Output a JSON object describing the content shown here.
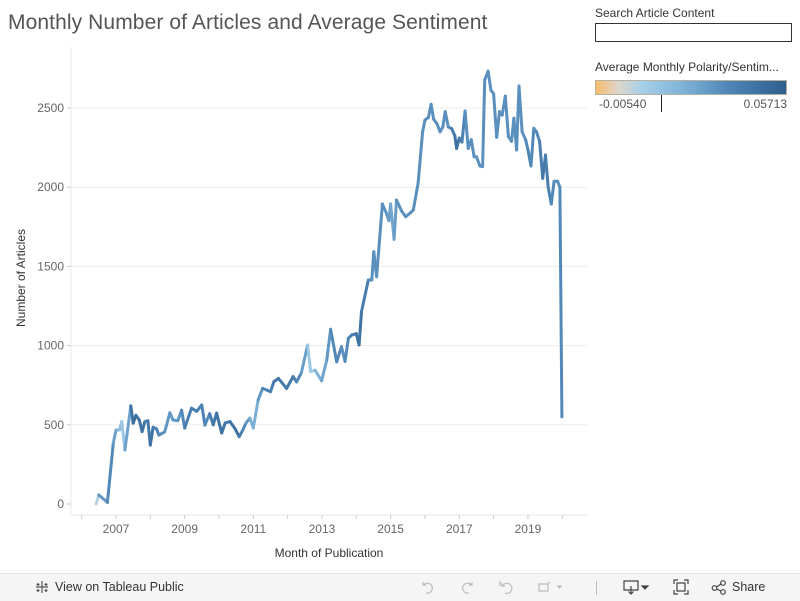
{
  "title": "Monthly Number of Articles and Average Sentiment",
  "search": {
    "label": "Search Article Content",
    "value": ""
  },
  "legend": {
    "title": "Average Monthly Polarity/Sentim...",
    "min_label": "-0.00540",
    "max_label": "0.05713",
    "min": -0.0054,
    "max": 0.05713,
    "colors": [
      "#f8bd6e",
      "#dcd6cc",
      "#a6d0e8",
      "#80b3d8",
      "#4f86b7",
      "#2d5e8e"
    ]
  },
  "toolbar": {
    "view_label": "View on Tableau Public",
    "share_label": "Share"
  },
  "chart_data": {
    "type": "line",
    "title": "Monthly Number of Articles and Average Sentiment",
    "xlabel": "Month of Publication",
    "ylabel": "Number of Articles",
    "xlim": [
      2005.85,
      2021.0
    ],
    "ylim": [
      -50,
      2820
    ],
    "x_ticks": [
      "2007",
      "2009",
      "2011",
      "2013",
      "2015",
      "2017",
      "2019"
    ],
    "y_ticks": [
      "0",
      "500",
      "1000",
      "1500",
      "2000",
      "2500"
    ],
    "grid": true,
    "color_by": "Average Monthly Polarity/Sentiment",
    "points": [
      [
        2006.42,
        0,
        -0.0054
      ],
      [
        2006.5,
        57,
        0.02
      ],
      [
        2006.75,
        10,
        0.045
      ],
      [
        2006.92,
        385,
        0.03
      ],
      [
        2007.0,
        467,
        0.03
      ],
      [
        2007.1,
        467,
        0.02
      ],
      [
        2007.17,
        520,
        0.015
      ],
      [
        2007.26,
        340,
        0.012
      ],
      [
        2007.43,
        620,
        0.045
      ],
      [
        2007.5,
        510,
        0.05
      ],
      [
        2007.58,
        560,
        0.05
      ],
      [
        2007.68,
        530,
        0.045
      ],
      [
        2007.76,
        457,
        0.05
      ],
      [
        2007.84,
        520,
        0.045
      ],
      [
        2007.93,
        525,
        0.04
      ],
      [
        2008.0,
        372,
        0.05
      ],
      [
        2008.08,
        485,
        0.045
      ],
      [
        2008.18,
        475,
        0.04
      ],
      [
        2008.25,
        435,
        0.04
      ],
      [
        2008.42,
        455,
        0.035
      ],
      [
        2008.57,
        576,
        0.03
      ],
      [
        2008.66,
        530,
        0.035
      ],
      [
        2008.8,
        526,
        0.03
      ],
      [
        2008.91,
        593,
        0.035
      ],
      [
        2009.0,
        480,
        0.04
      ],
      [
        2009.2,
        605,
        0.045
      ],
      [
        2009.35,
        585,
        0.04
      ],
      [
        2009.5,
        625,
        0.045
      ],
      [
        2009.59,
        498,
        0.035
      ],
      [
        2009.73,
        570,
        0.04
      ],
      [
        2009.83,
        500,
        0.045
      ],
      [
        2009.93,
        573,
        0.045
      ],
      [
        2010.08,
        448,
        0.05
      ],
      [
        2010.18,
        512,
        0.045
      ],
      [
        2010.32,
        520,
        0.045
      ],
      [
        2010.47,
        475,
        0.05
      ],
      [
        2010.59,
        425,
        0.045
      ],
      [
        2010.69,
        465,
        0.04
      ],
      [
        2010.79,
        512,
        0.035
      ],
      [
        2010.9,
        543,
        0.03
      ],
      [
        2011.0,
        480,
        0.018
      ],
      [
        2011.14,
        656,
        0.03
      ],
      [
        2011.27,
        730,
        0.035
      ],
      [
        2011.39,
        720,
        0.04
      ],
      [
        2011.5,
        709,
        0.04
      ],
      [
        2011.6,
        772,
        0.045
      ],
      [
        2011.73,
        793,
        0.045
      ],
      [
        2011.97,
        730,
        0.045
      ],
      [
        2012.16,
        804,
        0.045
      ],
      [
        2012.26,
        771,
        0.04
      ],
      [
        2012.4,
        829,
        0.035
      ],
      [
        2012.58,
        1004,
        0.025
      ],
      [
        2012.67,
        835,
        0.002
      ],
      [
        2012.8,
        845,
        0.02
      ],
      [
        2012.99,
        778,
        0.025
      ],
      [
        2013.14,
        909,
        0.03
      ],
      [
        2013.25,
        1103,
        0.035
      ],
      [
        2013.43,
        898,
        0.04
      ],
      [
        2013.57,
        993,
        0.035
      ],
      [
        2013.67,
        900,
        0.035
      ],
      [
        2013.77,
        1046,
        0.04
      ],
      [
        2013.87,
        1067,
        0.04
      ],
      [
        2014.0,
        1075,
        0.045
      ],
      [
        2014.08,
        1004,
        0.05
      ],
      [
        2014.15,
        1214,
        0.045
      ],
      [
        2014.35,
        1414,
        0.04
      ],
      [
        2014.45,
        1414,
        0.035
      ],
      [
        2014.51,
        1593,
        0.035
      ],
      [
        2014.59,
        1435,
        0.035
      ],
      [
        2014.76,
        1894,
        0.035
      ],
      [
        2014.86,
        1845,
        0.035
      ],
      [
        2014.95,
        1789,
        0.03
      ],
      [
        2015.0,
        1894,
        0.03
      ],
      [
        2015.1,
        1671,
        0.025
      ],
      [
        2015.17,
        1919,
        0.035
      ],
      [
        2015.32,
        1850,
        0.035
      ],
      [
        2015.44,
        1814,
        0.035
      ],
      [
        2015.57,
        1837,
        0.035
      ],
      [
        2015.66,
        1856,
        0.035
      ],
      [
        2015.8,
        2025,
        0.035
      ],
      [
        2015.93,
        2350,
        0.035
      ],
      [
        2016.0,
        2424,
        0.035
      ],
      [
        2016.1,
        2440,
        0.035
      ],
      [
        2016.18,
        2523,
        0.035
      ],
      [
        2016.25,
        2430,
        0.035
      ],
      [
        2016.35,
        2400,
        0.035
      ],
      [
        2016.44,
        2350,
        0.035
      ],
      [
        2016.52,
        2380,
        0.035
      ],
      [
        2016.59,
        2477,
        0.035
      ],
      [
        2016.68,
        2380,
        0.035
      ],
      [
        2016.78,
        2370,
        0.04
      ],
      [
        2016.87,
        2325,
        0.045
      ],
      [
        2016.92,
        2245,
        0.05
      ],
      [
        2017.0,
        2310,
        0.045
      ],
      [
        2017.08,
        2285,
        0.045
      ],
      [
        2017.17,
        2481,
        0.035
      ],
      [
        2017.26,
        2245,
        0.035
      ],
      [
        2017.35,
        2300,
        0.035
      ],
      [
        2017.43,
        2192,
        0.035
      ],
      [
        2017.5,
        2192,
        0.035
      ],
      [
        2017.6,
        2134,
        0.035
      ],
      [
        2017.68,
        2130,
        0.035
      ],
      [
        2017.74,
        2677,
        0.035
      ],
      [
        2017.84,
        2733,
        0.035
      ],
      [
        2017.92,
        2613,
        0.035
      ],
      [
        2018.0,
        2590,
        0.035
      ],
      [
        2018.09,
        2315,
        0.035
      ],
      [
        2018.17,
        2477,
        0.035
      ],
      [
        2018.25,
        2455,
        0.035
      ],
      [
        2018.34,
        2575,
        0.035
      ],
      [
        2018.43,
        2320,
        0.035
      ],
      [
        2018.52,
        2290,
        0.035
      ],
      [
        2018.59,
        2435,
        0.035
      ],
      [
        2018.67,
        2235,
        0.035
      ],
      [
        2018.74,
        2639,
        0.035
      ],
      [
        2018.83,
        2350,
        0.035
      ],
      [
        2018.93,
        2300,
        0.035
      ],
      [
        2019.0,
        2235,
        0.04
      ],
      [
        2019.09,
        2134,
        0.04
      ],
      [
        2019.17,
        2372,
        0.035
      ],
      [
        2019.25,
        2350,
        0.035
      ],
      [
        2019.34,
        2290,
        0.04
      ],
      [
        2019.43,
        2056,
        0.045
      ],
      [
        2019.51,
        2203,
        0.045
      ],
      [
        2019.59,
        2000,
        0.04
      ],
      [
        2019.68,
        1894,
        0.04
      ],
      [
        2019.76,
        2038,
        0.035
      ],
      [
        2019.86,
        2038,
        0.035
      ],
      [
        2019.93,
        2000,
        0.035
      ],
      [
        2019.99,
        550,
        0.04
      ]
    ]
  }
}
